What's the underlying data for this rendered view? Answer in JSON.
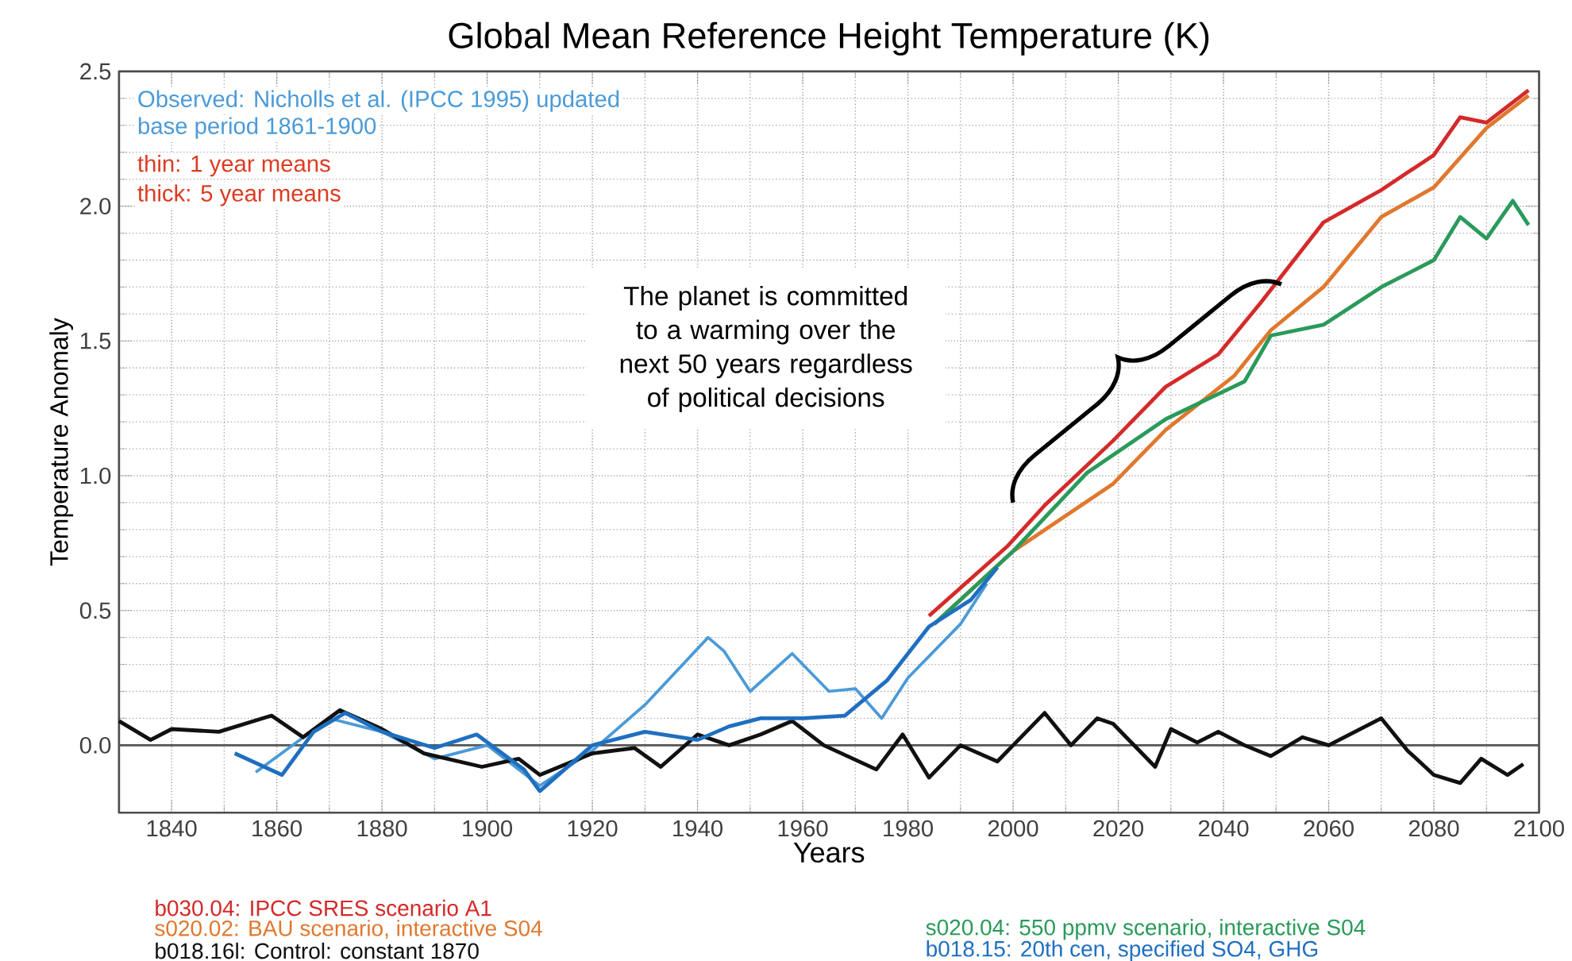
{
  "chart_data": {
    "type": "line",
    "title": "Global Mean Reference Height Temperature (K)",
    "xlabel": "Years",
    "ylabel": "Temperature Anomaly",
    "xlim": [
      1830,
      2100
    ],
    "xticks": [
      1840,
      1860,
      1880,
      1900,
      1920,
      1940,
      1960,
      1980,
      2000,
      2020,
      2040,
      2060,
      2080,
      2100
    ],
    "ylim": [
      -0.25,
      2.5
    ],
    "yticks": [
      {
        "value": 0,
        "label": "0.0"
      },
      0.5,
      {
        "value": 1,
        "label": "1.0"
      },
      1.5,
      {
        "value": 2,
        "label": "2.0"
      },
      2.5
    ],
    "grid": true,
    "legend": "bottom",
    "marker": "none",
    "line_style": "solid",
    "ref_lines": [
      {
        "axis": "y",
        "value": 0,
        "color": "#555555"
      }
    ],
    "annotations": [
      "Observed: Nicholls et al. (IPCC 1995) updated",
      "base period 1861-1900",
      "thin: 1 year means",
      "thick: 5 year means",
      "The planet is committed to a warming over the next 50 years regardless of political decisions"
    ],
    "series": [
      {
        "name": "b030.04: IPCC SRES scenario A1",
        "color": "#d42a2a",
        "x": [
          1984,
          1999,
          2006,
          2019,
          2029,
          2039,
          2047,
          2059,
          2070,
          2080,
          2085,
          2090,
          2098
        ],
        "values": [
          0.48,
          0.74,
          0.89,
          1.13,
          1.33,
          1.45,
          1.64,
          1.94,
          2.06,
          2.19,
          2.33,
          2.31,
          2.43
        ]
      },
      {
        "name": "s020.02: BAU scenario, interactive S04",
        "color": "#e0782e",
        "x": [
          1985,
          2000,
          2019,
          2029,
          2042,
          2049,
          2059,
          2070,
          2080,
          2090,
          2098
        ],
        "values": [
          0.45,
          0.72,
          0.97,
          1.17,
          1.37,
          1.54,
          1.7,
          1.96,
          2.07,
          2.29,
          2.41
        ]
      },
      {
        "name": "b018.16l: Control: constant 1870",
        "color": "#111111",
        "x": [
          1830,
          1836,
          1840,
          1849,
          1859,
          1865,
          1872,
          1880,
          1888,
          1899,
          1906,
          1910,
          1920,
          1928,
          1933,
          1940,
          1946,
          1952,
          1958,
          1964,
          1974,
          1979,
          1984,
          1990,
          1997,
          2006,
          2011,
          2016,
          2019,
          2027,
          2030,
          2035,
          2039,
          2044,
          2049,
          2055,
          2060,
          2065,
          2070,
          2075,
          2080,
          2085,
          2089,
          2094,
          2097
        ],
        "values": [
          0.09,
          0.02,
          0.06,
          0.05,
          0.11,
          0.03,
          0.13,
          0.06,
          -0.03,
          -0.08,
          -0.05,
          -0.11,
          -0.03,
          -0.01,
          -0.08,
          0.04,
          0.0,
          0.04,
          0.09,
          0.0,
          -0.09,
          0.04,
          -0.12,
          0.0,
          -0.06,
          0.12,
          0.0,
          0.1,
          0.08,
          -0.08,
          0.06,
          0.01,
          0.05,
          0.0,
          -0.04,
          0.03,
          0.0,
          0.05,
          0.1,
          -0.02,
          -0.11,
          -0.14,
          -0.05,
          -0.11,
          -0.07
        ]
      },
      {
        "name": "s020.04: 550 ppmv scenario, interactive S04",
        "color": "#2a9a5a",
        "x": [
          1985,
          2000,
          2014,
          2029,
          2044,
          2049,
          2059,
          2070,
          2080,
          2085,
          2090,
          2095,
          2098
        ],
        "values": [
          0.45,
          0.72,
          1.01,
          1.21,
          1.35,
          1.52,
          1.56,
          1.7,
          1.8,
          1.96,
          1.88,
          2.02,
          1.93
        ]
      },
      {
        "name": "b018.15: 20th cen, specified SO4, GHG",
        "color": "#1f6fc0",
        "x": [
          1852,
          1861,
          1867,
          1873,
          1880,
          1890,
          1898,
          1907,
          1910,
          1920,
          1930,
          1940,
          1946,
          1952,
          1960,
          1968,
          1976,
          1984,
          1992,
          1997
        ],
        "values": [
          -0.03,
          -0.11,
          0.05,
          0.12,
          0.05,
          -0.01,
          0.04,
          -0.09,
          -0.17,
          0.0,
          0.05,
          0.02,
          0.07,
          0.1,
          0.1,
          0.11,
          0.24,
          0.44,
          0.54,
          0.66
        ]
      },
      {
        "color": "#4a9ad8",
        "x": [
          1856,
          1870,
          1880,
          1890,
          1900,
          1910,
          1920,
          1930,
          1942,
          1945,
          1950,
          1958,
          1965,
          1970,
          1975,
          1980,
          1990,
          1995
        ],
        "values": [
          -0.1,
          0.1,
          0.05,
          -0.05,
          0.0,
          -0.15,
          -0.02,
          0.15,
          0.4,
          0.35,
          0.2,
          0.34,
          0.2,
          0.21,
          0.1,
          0.25,
          0.45,
          0.6
        ]
      }
    ]
  }
}
